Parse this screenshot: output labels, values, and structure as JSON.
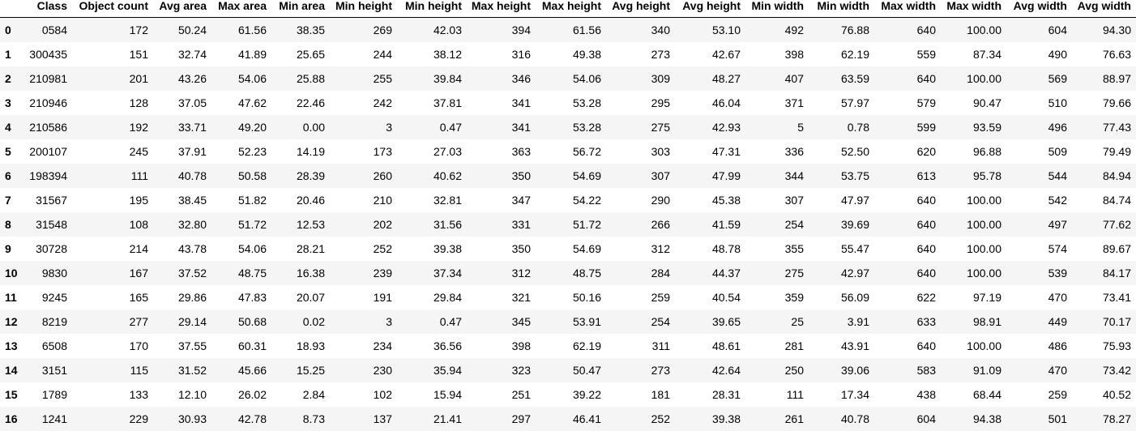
{
  "table": {
    "index_header": "",
    "columns": [
      "Class",
      "Object count",
      "Avg area",
      "Max area",
      "Min area",
      "Min height",
      "Min height",
      "Max height",
      "Max height",
      "Avg height",
      "Avg height",
      "Min width",
      "Min width",
      "Max width",
      "Max width",
      "Avg width",
      "Avg width"
    ],
    "rows": [
      {
        "index": "0",
        "cells": [
          "0584",
          "172",
          "50.24",
          "61.56",
          "38.35",
          "269",
          "42.03",
          "394",
          "61.56",
          "340",
          "53.10",
          "492",
          "76.88",
          "640",
          "100.00",
          "604",
          "94.30"
        ]
      },
      {
        "index": "1",
        "cells": [
          "300435",
          "151",
          "32.74",
          "41.89",
          "25.65",
          "244",
          "38.12",
          "316",
          "49.38",
          "273",
          "42.67",
          "398",
          "62.19",
          "559",
          "87.34",
          "490",
          "76.63"
        ]
      },
      {
        "index": "2",
        "cells": [
          "210981",
          "201",
          "43.26",
          "54.06",
          "25.88",
          "255",
          "39.84",
          "346",
          "54.06",
          "309",
          "48.27",
          "407",
          "63.59",
          "640",
          "100.00",
          "569",
          "88.97"
        ]
      },
      {
        "index": "3",
        "cells": [
          "210946",
          "128",
          "37.05",
          "47.62",
          "22.46",
          "242",
          "37.81",
          "341",
          "53.28",
          "295",
          "46.04",
          "371",
          "57.97",
          "579",
          "90.47",
          "510",
          "79.66"
        ]
      },
      {
        "index": "4",
        "cells": [
          "210586",
          "192",
          "33.71",
          "49.20",
          "0.00",
          "3",
          "0.47",
          "341",
          "53.28",
          "275",
          "42.93",
          "5",
          "0.78",
          "599",
          "93.59",
          "496",
          "77.43"
        ]
      },
      {
        "index": "5",
        "cells": [
          "200107",
          "245",
          "37.91",
          "52.23",
          "14.19",
          "173",
          "27.03",
          "363",
          "56.72",
          "303",
          "47.31",
          "336",
          "52.50",
          "620",
          "96.88",
          "509",
          "79.49"
        ]
      },
      {
        "index": "6",
        "cells": [
          "198394",
          "111",
          "40.78",
          "50.58",
          "28.39",
          "260",
          "40.62",
          "350",
          "54.69",
          "307",
          "47.99",
          "344",
          "53.75",
          "613",
          "95.78",
          "544",
          "84.94"
        ]
      },
      {
        "index": "7",
        "cells": [
          "31567",
          "195",
          "38.45",
          "51.82",
          "20.46",
          "210",
          "32.81",
          "347",
          "54.22",
          "290",
          "45.38",
          "307",
          "47.97",
          "640",
          "100.00",
          "542",
          "84.74"
        ]
      },
      {
        "index": "8",
        "cells": [
          "31548",
          "108",
          "32.80",
          "51.72",
          "12.53",
          "202",
          "31.56",
          "331",
          "51.72",
          "266",
          "41.59",
          "254",
          "39.69",
          "640",
          "100.00",
          "497",
          "77.62"
        ]
      },
      {
        "index": "9",
        "cells": [
          "30728",
          "214",
          "43.78",
          "54.06",
          "28.21",
          "252",
          "39.38",
          "350",
          "54.69",
          "312",
          "48.78",
          "355",
          "55.47",
          "640",
          "100.00",
          "574",
          "89.67"
        ]
      },
      {
        "index": "10",
        "cells": [
          "9830",
          "167",
          "37.52",
          "48.75",
          "16.38",
          "239",
          "37.34",
          "312",
          "48.75",
          "284",
          "44.37",
          "275",
          "42.97",
          "640",
          "100.00",
          "539",
          "84.17"
        ]
      },
      {
        "index": "11",
        "cells": [
          "9245",
          "165",
          "29.86",
          "47.83",
          "20.07",
          "191",
          "29.84",
          "321",
          "50.16",
          "259",
          "40.54",
          "359",
          "56.09",
          "622",
          "97.19",
          "470",
          "73.41"
        ]
      },
      {
        "index": "12",
        "cells": [
          "8219",
          "277",
          "29.14",
          "50.68",
          "0.02",
          "3",
          "0.47",
          "345",
          "53.91",
          "254",
          "39.65",
          "25",
          "3.91",
          "633",
          "98.91",
          "449",
          "70.17"
        ]
      },
      {
        "index": "13",
        "cells": [
          "6508",
          "170",
          "37.55",
          "60.31",
          "18.93",
          "234",
          "36.56",
          "398",
          "62.19",
          "311",
          "48.61",
          "281",
          "43.91",
          "640",
          "100.00",
          "486",
          "75.93"
        ]
      },
      {
        "index": "14",
        "cells": [
          "3151",
          "115",
          "31.52",
          "45.66",
          "15.25",
          "230",
          "35.94",
          "323",
          "50.47",
          "273",
          "42.64",
          "250",
          "39.06",
          "583",
          "91.09",
          "470",
          "73.42"
        ]
      },
      {
        "index": "15",
        "cells": [
          "1789",
          "133",
          "12.10",
          "26.02",
          "2.84",
          "102",
          "15.94",
          "251",
          "39.22",
          "181",
          "28.31",
          "111",
          "17.34",
          "438",
          "68.44",
          "259",
          "40.52"
        ]
      },
      {
        "index": "16",
        "cells": [
          "1241",
          "229",
          "30.93",
          "42.78",
          "8.73",
          "137",
          "21.41",
          "297",
          "46.41",
          "252",
          "39.38",
          "261",
          "40.78",
          "604",
          "94.38",
          "501",
          "78.27"
        ]
      }
    ]
  },
  "colors": {
    "stripe_row": "#f5f5f5",
    "plain_row": "#ffffff",
    "text": "#000000",
    "header_rule": "#000000"
  }
}
